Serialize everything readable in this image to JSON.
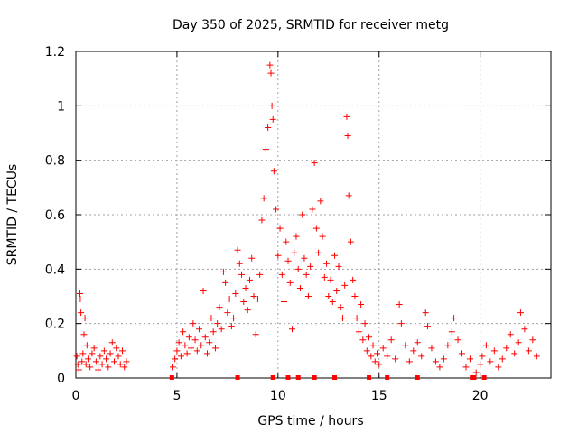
{
  "chart_data": {
    "type": "scatter",
    "title": "Day 350 of 2025, SRMTID for receiver metg",
    "xlabel": "GPS time / hours",
    "ylabel": "SRMTID / TECUs",
    "xlim": [
      0,
      23.5
    ],
    "ylim": [
      0,
      1.2
    ],
    "xticks": [
      0,
      5,
      10,
      15,
      20
    ],
    "xtick_labels": [
      "0",
      "5",
      "10",
      "15",
      "20"
    ],
    "yticks": [
      0,
      0.2,
      0.4,
      0.6,
      0.8,
      1.0,
      1.2
    ],
    "ytick_labels": [
      "0",
      "0.2",
      "0.4",
      "0.6",
      "0.8",
      "1",
      "1.2"
    ],
    "grid": true,
    "marker": "plus",
    "color": "#ff0000",
    "gap_marker_x": [
      4.75,
      8.0,
      9.75,
      10.5,
      11.0,
      11.8,
      12.8,
      14.5,
      15.4,
      16.9,
      19.6,
      19.7,
      20.2
    ],
    "series": [
      {
        "name": "SRMTID",
        "points": [
          [
            0.05,
            0.08
          ],
          [
            0.1,
            0.05
          ],
          [
            0.15,
            0.03
          ],
          [
            0.2,
            0.31
          ],
          [
            0.22,
            0.29
          ],
          [
            0.25,
            0.24
          ],
          [
            0.3,
            0.06
          ],
          [
            0.35,
            0.09
          ],
          [
            0.4,
            0.16
          ],
          [
            0.45,
            0.22
          ],
          [
            0.5,
            0.05
          ],
          [
            0.55,
            0.12
          ],
          [
            0.6,
            0.07
          ],
          [
            0.7,
            0.04
          ],
          [
            0.8,
            0.09
          ],
          [
            0.9,
            0.11
          ],
          [
            1.0,
            0.06
          ],
          [
            1.1,
            0.03
          ],
          [
            1.2,
            0.08
          ],
          [
            1.3,
            0.05
          ],
          [
            1.4,
            0.1
          ],
          [
            1.5,
            0.07
          ],
          [
            1.6,
            0.04
          ],
          [
            1.7,
            0.09
          ],
          [
            1.8,
            0.13
          ],
          [
            1.9,
            0.06
          ],
          [
            2.0,
            0.11
          ],
          [
            2.1,
            0.08
          ],
          [
            2.2,
            0.05
          ],
          [
            2.3,
            0.1
          ],
          [
            2.4,
            0.04
          ],
          [
            2.5,
            0.06
          ],
          [
            4.8,
            0.04
          ],
          [
            4.9,
            0.07
          ],
          [
            5.0,
            0.1
          ],
          [
            5.1,
            0.13
          ],
          [
            5.2,
            0.08
          ],
          [
            5.3,
            0.17
          ],
          [
            5.4,
            0.12
          ],
          [
            5.5,
            0.09
          ],
          [
            5.6,
            0.15
          ],
          [
            5.7,
            0.11
          ],
          [
            5.8,
            0.2
          ],
          [
            5.9,
            0.14
          ],
          [
            6.0,
            0.1
          ],
          [
            6.1,
            0.18
          ],
          [
            6.2,
            0.12
          ],
          [
            6.3,
            0.32
          ],
          [
            6.4,
            0.15
          ],
          [
            6.5,
            0.09
          ],
          [
            6.6,
            0.13
          ],
          [
            6.7,
            0.22
          ],
          [
            6.8,
            0.17
          ],
          [
            6.9,
            0.11
          ],
          [
            7.0,
            0.2
          ],
          [
            7.1,
            0.26
          ],
          [
            7.2,
            0.18
          ],
          [
            7.3,
            0.39
          ],
          [
            7.4,
            0.35
          ],
          [
            7.5,
            0.24
          ],
          [
            7.6,
            0.29
          ],
          [
            7.7,
            0.19
          ],
          [
            7.8,
            0.22
          ],
          [
            7.9,
            0.31
          ],
          [
            8.0,
            0.47
          ],
          [
            8.1,
            0.42
          ],
          [
            8.2,
            0.38
          ],
          [
            8.3,
            0.28
          ],
          [
            8.4,
            0.33
          ],
          [
            8.5,
            0.25
          ],
          [
            8.6,
            0.36
          ],
          [
            8.7,
            0.44
          ],
          [
            8.8,
            0.3
          ],
          [
            8.9,
            0.16
          ],
          [
            9.0,
            0.29
          ],
          [
            9.1,
            0.38
          ],
          [
            9.2,
            0.58
          ],
          [
            9.3,
            0.66
          ],
          [
            9.4,
            0.84
          ],
          [
            9.5,
            0.92
          ],
          [
            9.6,
            1.15
          ],
          [
            9.65,
            1.12
          ],
          [
            9.7,
            1.0
          ],
          [
            9.75,
            0.95
          ],
          [
            9.8,
            0.76
          ],
          [
            9.9,
            0.62
          ],
          [
            10.0,
            0.45
          ],
          [
            10.1,
            0.55
          ],
          [
            10.2,
            0.38
          ],
          [
            10.3,
            0.28
          ],
          [
            10.4,
            0.5
          ],
          [
            10.5,
            0.43
          ],
          [
            10.6,
            0.35
          ],
          [
            10.7,
            0.18
          ],
          [
            10.8,
            0.46
          ],
          [
            10.9,
            0.52
          ],
          [
            11.0,
            0.4
          ],
          [
            11.1,
            0.33
          ],
          [
            11.2,
            0.6
          ],
          [
            11.3,
            0.44
          ],
          [
            11.4,
            0.38
          ],
          [
            11.5,
            0.3
          ],
          [
            11.6,
            0.41
          ],
          [
            11.7,
            0.62
          ],
          [
            11.8,
            0.79
          ],
          [
            11.9,
            0.55
          ],
          [
            12.0,
            0.46
          ],
          [
            12.1,
            0.65
          ],
          [
            12.2,
            0.52
          ],
          [
            12.3,
            0.37
          ],
          [
            12.4,
            0.42
          ],
          [
            12.5,
            0.3
          ],
          [
            12.6,
            0.36
          ],
          [
            12.7,
            0.28
          ],
          [
            12.8,
            0.45
          ],
          [
            12.9,
            0.32
          ],
          [
            13.0,
            0.41
          ],
          [
            13.1,
            0.26
          ],
          [
            13.2,
            0.22
          ],
          [
            13.3,
            0.34
          ],
          [
            13.4,
            0.96
          ],
          [
            13.45,
            0.89
          ],
          [
            13.5,
            0.67
          ],
          [
            13.6,
            0.5
          ],
          [
            13.7,
            0.36
          ],
          [
            13.8,
            0.3
          ],
          [
            13.9,
            0.22
          ],
          [
            14.0,
            0.17
          ],
          [
            14.1,
            0.27
          ],
          [
            14.2,
            0.14
          ],
          [
            14.3,
            0.2
          ],
          [
            14.4,
            0.1
          ],
          [
            14.5,
            0.15
          ],
          [
            14.6,
            0.08
          ],
          [
            14.7,
            0.12
          ],
          [
            14.8,
            0.06
          ],
          [
            14.9,
            0.09
          ],
          [
            15.0,
            0.05
          ],
          [
            15.2,
            0.11
          ],
          [
            15.4,
            0.08
          ],
          [
            15.6,
            0.14
          ],
          [
            15.8,
            0.07
          ],
          [
            16.0,
            0.27
          ],
          [
            16.1,
            0.2
          ],
          [
            16.3,
            0.12
          ],
          [
            16.5,
            0.06
          ],
          [
            16.7,
            0.1
          ],
          [
            16.9,
            0.13
          ],
          [
            17.1,
            0.08
          ],
          [
            17.3,
            0.24
          ],
          [
            17.4,
            0.19
          ],
          [
            17.6,
            0.11
          ],
          [
            17.8,
            0.06
          ],
          [
            18.0,
            0.04
          ],
          [
            18.2,
            0.07
          ],
          [
            18.4,
            0.12
          ],
          [
            18.6,
            0.17
          ],
          [
            18.7,
            0.22
          ],
          [
            18.9,
            0.14
          ],
          [
            19.1,
            0.09
          ],
          [
            19.3,
            0.04
          ],
          [
            19.5,
            0.07
          ],
          [
            19.8,
            0.02
          ],
          [
            20.0,
            0.05
          ],
          [
            20.1,
            0.08
          ],
          [
            20.3,
            0.12
          ],
          [
            20.5,
            0.06
          ],
          [
            20.7,
            0.1
          ],
          [
            20.9,
            0.04
          ],
          [
            21.1,
            0.07
          ],
          [
            21.3,
            0.11
          ],
          [
            21.5,
            0.16
          ],
          [
            21.7,
            0.09
          ],
          [
            21.9,
            0.13
          ],
          [
            22.0,
            0.24
          ],
          [
            22.2,
            0.18
          ],
          [
            22.4,
            0.1
          ],
          [
            22.6,
            0.14
          ],
          [
            22.8,
            0.08
          ]
        ]
      }
    ]
  }
}
